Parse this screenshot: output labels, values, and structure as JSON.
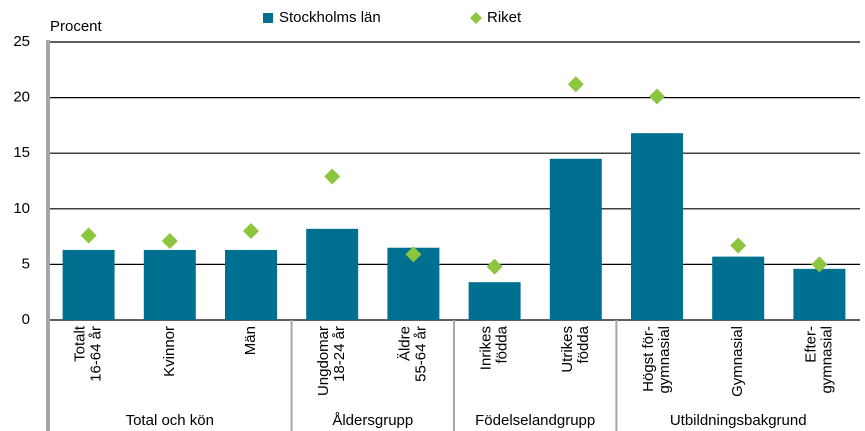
{
  "chart_data": {
    "type": "bar",
    "yaxis_label": "Procent",
    "groups": [
      {
        "name": "Total och kön",
        "categories": [
          [
            "Totalt",
            "16-64 år"
          ],
          [
            "Kvinnor"
          ],
          [
            "Män"
          ]
        ]
      },
      {
        "name": "Åldersgrupp",
        "categories": [
          [
            "Ungdomar",
            "18-24 år"
          ],
          [
            "Äldre",
            "55-64 år"
          ]
        ]
      },
      {
        "name": "Födelselandgrupp",
        "categories": [
          [
            "Inrikes",
            "födda"
          ],
          [
            "Utrikes",
            "födda"
          ]
        ]
      },
      {
        "name": "Utbildningsbakgrund",
        "categories": [
          [
            "Högst för-",
            "gymnasial"
          ],
          [
            "Gymnasial"
          ],
          [
            "Efter-",
            "gymnasial"
          ]
        ]
      }
    ],
    "series": [
      {
        "name": "Stockholms län",
        "color": "#007090",
        "marker": "bar",
        "values": [
          6.3,
          6.3,
          6.3,
          8.2,
          6.5,
          3.4,
          14.5,
          16.8,
          5.7,
          4.6
        ]
      },
      {
        "name": "Riket",
        "color": "#8cc63f",
        "marker": "diamond",
        "values": [
          7.6,
          7.1,
          8.0,
          12.9,
          5.9,
          4.8,
          21.2,
          20.1,
          6.7,
          5.0
        ]
      }
    ],
    "ylim": [
      0,
      25
    ],
    "yticks": [
      0,
      5,
      10,
      15,
      20,
      25
    ],
    "grid": true
  }
}
